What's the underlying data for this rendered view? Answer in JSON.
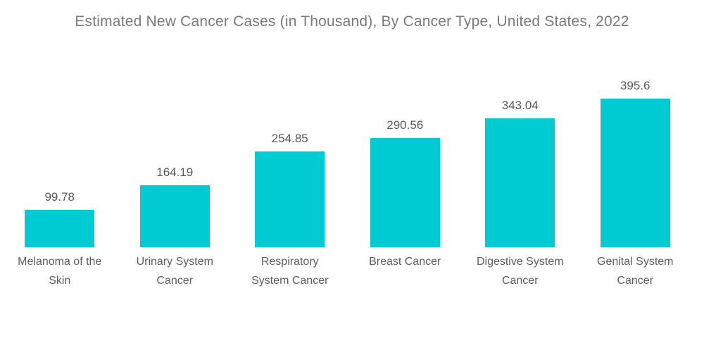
{
  "title": "Estimated New Cancer Cases (in Thousand), By Cancer Type, United States, 2022",
  "colors": {
    "bar": "#00cbd2",
    "title_text": "#7a7a7a",
    "value_label_text": "#595959",
    "category_label_text": "#5e5e5e",
    "background": "#ffffff"
  },
  "chart_data": {
    "type": "bar",
    "title": "Estimated New Cancer Cases (in Thousand), By Cancer Type, United States, 2022",
    "categories": [
      "Melanoma of the Skin",
      "Urinary System Cancer",
      "Respiratory System Cancer",
      "Breast Cancer",
      "Digestive System Cancer",
      "Genital System Cancer"
    ],
    "category_lines": [
      [
        "Melanoma of the",
        "Skin"
      ],
      [
        "Urinary System",
        "Cancer"
      ],
      [
        "Respiratory",
        "System Cancer"
      ],
      [
        "Breast Cancer"
      ],
      [
        "Digestive System",
        "Cancer"
      ],
      [
        "Genital System",
        "Cancer"
      ]
    ],
    "values": [
      99.78,
      164.19,
      254.85,
      290.56,
      343.04,
      395.6
    ],
    "value_labels": [
      "99.78",
      "164.19",
      "254.85",
      "290.56",
      "343.04",
      "395.6"
    ],
    "xlabel": "",
    "ylabel": "",
    "unit": "thousand cases",
    "ylim": [
      0,
      420
    ],
    "grid": false,
    "legend": false,
    "bar_color": "#00cbd2"
  }
}
